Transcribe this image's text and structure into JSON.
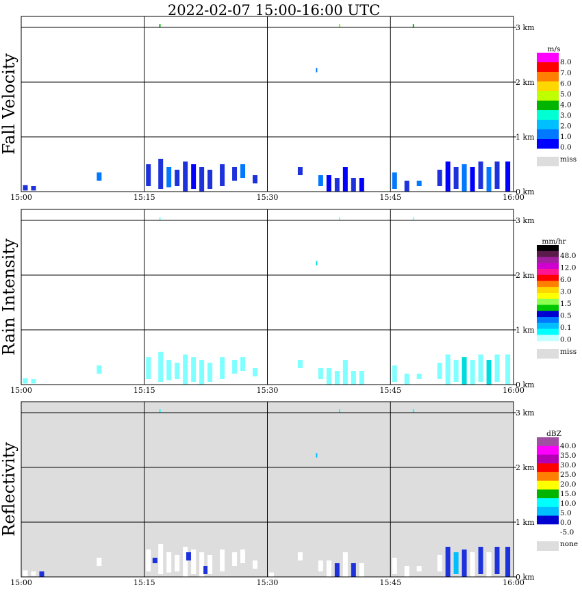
{
  "chart_data": {
    "type": "heatmap",
    "title": "2022-02-07  15:00-16:00 UTC",
    "x_tick_labels": [
      "15:00",
      "15:15",
      "15:30",
      "15:45",
      "16:00"
    ],
    "x_range_minutes": [
      0,
      60
    ],
    "y_tick_labels": [
      "0 km",
      "1 km",
      "2 km",
      "3 km"
    ],
    "y_range_km": [
      0,
      3.2
    ],
    "panels": [
      {
        "id": "fall-velocity",
        "label": "Fall Velocity",
        "background": "#ffffff",
        "legend": {
          "unit": "m/s",
          "colors": [
            "#ff00ff",
            "#ff0000",
            "#ff7f00",
            "#ffd700",
            "#bfff00",
            "#00b400",
            "#00ffd2",
            "#00bfff",
            "#0078ff",
            "#0000ff"
          ],
          "labels": [
            "8.0",
            "7.0",
            "6.0",
            "5.0",
            "4.0",
            "3.0",
            "2.0",
            "1.0",
            "0.0"
          ],
          "miss_label": "miss",
          "miss_color": "#dddddd"
        },
        "echoes": [
          {
            "t": 0.5,
            "z0": 0.02,
            "z1": 0.12,
            "c": "#1e32dc"
          },
          {
            "t": 1.5,
            "z0": 0.02,
            "z1": 0.1,
            "c": "#1e32dc"
          },
          {
            "t": 9.5,
            "z0": 0.2,
            "z1": 0.35,
            "c": "#0078ff"
          },
          {
            "t": 15.5,
            "z0": 0.1,
            "z1": 0.5,
            "c": "#1e32dc"
          },
          {
            "t": 17.0,
            "z0": 0.05,
            "z1": 0.6,
            "c": "#1e32dc"
          },
          {
            "t": 18.0,
            "z0": 0.08,
            "z1": 0.45,
            "c": "#0078ff"
          },
          {
            "t": 19.0,
            "z0": 0.1,
            "z1": 0.4,
            "c": "#1e32dc"
          },
          {
            "t": 20.0,
            "z0": 0.0,
            "z1": 0.55,
            "c": "#1e32dc"
          },
          {
            "t": 21.0,
            "z0": 0.05,
            "z1": 0.5,
            "c": "#0000ff"
          },
          {
            "t": 22.0,
            "z0": 0.0,
            "z1": 0.45,
            "c": "#1e32dc"
          },
          {
            "t": 23.0,
            "z0": 0.05,
            "z1": 0.4,
            "c": "#1e32dc"
          },
          {
            "t": 24.5,
            "z0": 0.1,
            "z1": 0.5,
            "c": "#1e32dc"
          },
          {
            "t": 26.0,
            "z0": 0.2,
            "z1": 0.45,
            "c": "#1e32dc"
          },
          {
            "t": 27.0,
            "z0": 0.25,
            "z1": 0.5,
            "c": "#0078ff"
          },
          {
            "t": 28.5,
            "z0": 0.15,
            "z1": 0.3,
            "c": "#1e32dc"
          },
          {
            "t": 34.0,
            "z0": 0.3,
            "z1": 0.45,
            "c": "#1e32dc"
          },
          {
            "t": 36.5,
            "z0": 0.1,
            "z1": 0.3,
            "c": "#0078ff"
          },
          {
            "t": 37.5,
            "z0": 0.0,
            "z1": 0.3,
            "c": "#0000ff"
          },
          {
            "t": 38.5,
            "z0": 0.0,
            "z1": 0.25,
            "c": "#1e32dc"
          },
          {
            "t": 39.5,
            "z0": 0.0,
            "z1": 0.45,
            "c": "#0000ff"
          },
          {
            "t": 40.5,
            "z0": 0.0,
            "z1": 0.25,
            "c": "#1e32dc"
          },
          {
            "t": 41.5,
            "z0": 0.0,
            "z1": 0.25,
            "c": "#0000ff"
          },
          {
            "t": 45.5,
            "z0": 0.05,
            "z1": 0.35,
            "c": "#0078ff"
          },
          {
            "t": 47.0,
            "z0": 0.0,
            "z1": 0.2,
            "c": "#1e32dc"
          },
          {
            "t": 48.5,
            "z0": 0.1,
            "z1": 0.2,
            "c": "#0078ff"
          },
          {
            "t": 51.0,
            "z0": 0.1,
            "z1": 0.4,
            "c": "#1e32dc"
          },
          {
            "t": 52.0,
            "z0": 0.0,
            "z1": 0.55,
            "c": "#0000ff"
          },
          {
            "t": 53.0,
            "z0": 0.05,
            "z1": 0.45,
            "c": "#1e32dc"
          },
          {
            "t": 54.0,
            "z0": 0.0,
            "z1": 0.5,
            "c": "#0078ff"
          },
          {
            "t": 55.0,
            "z0": 0.0,
            "z1": 0.45,
            "c": "#0000ff"
          },
          {
            "t": 56.0,
            "z0": 0.05,
            "z1": 0.55,
            "c": "#1e32dc"
          },
          {
            "t": 57.0,
            "z0": 0.0,
            "z1": 0.45,
            "c": "#0078ff"
          },
          {
            "t": 58.0,
            "z0": 0.05,
            "z1": 0.55,
            "c": "#1e32dc"
          },
          {
            "t": 59.3,
            "z0": 0.0,
            "z1": 0.55,
            "c": "#0000ff"
          },
          {
            "t": 36.0,
            "z0": 2.18,
            "z1": 2.26,
            "c": "#0078ff"
          },
          {
            "t": 16.9,
            "z0": 3.0,
            "z1": 3.06,
            "c": "#00b400"
          },
          {
            "t": 38.8,
            "z0": 3.0,
            "z1": 3.06,
            "c": "#7fff00"
          },
          {
            "t": 47.8,
            "z0": 3.0,
            "z1": 3.06,
            "c": "#00b400"
          }
        ]
      },
      {
        "id": "rain-intensity",
        "label": "Rain Intensity",
        "background": "#ffffff",
        "legend": {
          "unit": "mm/hr",
          "colors": [
            "#000000",
            "#5a1a4a",
            "#a020a0",
            "#d000d0",
            "#ff1493",
            "#ff0000",
            "#ff7f00",
            "#ffd700",
            "#ffff00",
            "#8cff50",
            "#00c800",
            "#0000d0",
            "#0078ff",
            "#00bfff",
            "#00ffff",
            "#bfffff"
          ],
          "labels": [
            "48.0",
            "12.0",
            "6.0",
            "3.0",
            "1.5",
            "0.5",
            "0.1",
            "0.0"
          ],
          "miss_label": "miss",
          "miss_color": "#dddddd"
        },
        "echoes": [
          {
            "t": 0.5,
            "z0": 0.02,
            "z1": 0.12,
            "c": "#7fffff"
          },
          {
            "t": 1.5,
            "z0": 0.02,
            "z1": 0.1,
            "c": "#7fffff"
          },
          {
            "t": 9.5,
            "z0": 0.2,
            "z1": 0.35,
            "c": "#7fffff"
          },
          {
            "t": 15.5,
            "z0": 0.1,
            "z1": 0.5,
            "c": "#7fffff"
          },
          {
            "t": 17.0,
            "z0": 0.05,
            "z1": 0.6,
            "c": "#7fffff"
          },
          {
            "t": 18.0,
            "z0": 0.08,
            "z1": 0.45,
            "c": "#7fffff"
          },
          {
            "t": 19.0,
            "z0": 0.1,
            "z1": 0.4,
            "c": "#7fffff"
          },
          {
            "t": 20.0,
            "z0": 0.0,
            "z1": 0.55,
            "c": "#7fffff"
          },
          {
            "t": 21.0,
            "z0": 0.05,
            "z1": 0.5,
            "c": "#7fffff"
          },
          {
            "t": 22.0,
            "z0": 0.0,
            "z1": 0.45,
            "c": "#7fffff"
          },
          {
            "t": 23.0,
            "z0": 0.05,
            "z1": 0.4,
            "c": "#7fffff"
          },
          {
            "t": 24.5,
            "z0": 0.1,
            "z1": 0.5,
            "c": "#7fffff"
          },
          {
            "t": 26.0,
            "z0": 0.2,
            "z1": 0.45,
            "c": "#7fffff"
          },
          {
            "t": 27.0,
            "z0": 0.25,
            "z1": 0.5,
            "c": "#7fffff"
          },
          {
            "t": 28.5,
            "z0": 0.15,
            "z1": 0.3,
            "c": "#7fffff"
          },
          {
            "t": 34.0,
            "z0": 0.3,
            "z1": 0.45,
            "c": "#7fffff"
          },
          {
            "t": 36.5,
            "z0": 0.1,
            "z1": 0.3,
            "c": "#7fffff"
          },
          {
            "t": 37.5,
            "z0": 0.0,
            "z1": 0.3,
            "c": "#7fffff"
          },
          {
            "t": 38.5,
            "z0": 0.0,
            "z1": 0.25,
            "c": "#7fffff"
          },
          {
            "t": 39.5,
            "z0": 0.0,
            "z1": 0.45,
            "c": "#7fffff"
          },
          {
            "t": 40.5,
            "z0": 0.0,
            "z1": 0.25,
            "c": "#7fffff"
          },
          {
            "t": 41.5,
            "z0": 0.0,
            "z1": 0.25,
            "c": "#7fffff"
          },
          {
            "t": 45.5,
            "z0": 0.05,
            "z1": 0.35,
            "c": "#7fffff"
          },
          {
            "t": 47.0,
            "z0": 0.0,
            "z1": 0.2,
            "c": "#7fffff"
          },
          {
            "t": 48.5,
            "z0": 0.1,
            "z1": 0.2,
            "c": "#7fffff"
          },
          {
            "t": 51.0,
            "z0": 0.1,
            "z1": 0.4,
            "c": "#7fffff"
          },
          {
            "t": 52.0,
            "z0": 0.0,
            "z1": 0.55,
            "c": "#7fffff"
          },
          {
            "t": 53.0,
            "z0": 0.05,
            "z1": 0.45,
            "c": "#7fffff"
          },
          {
            "t": 54.0,
            "z0": 0.0,
            "z1": 0.5,
            "c": "#00dcdc"
          },
          {
            "t": 55.0,
            "z0": 0.0,
            "z1": 0.45,
            "c": "#7fffff"
          },
          {
            "t": 56.0,
            "z0": 0.05,
            "z1": 0.55,
            "c": "#7fffff"
          },
          {
            "t": 57.0,
            "z0": 0.0,
            "z1": 0.45,
            "c": "#00dcdc"
          },
          {
            "t": 58.0,
            "z0": 0.05,
            "z1": 0.55,
            "c": "#7fffff"
          },
          {
            "t": 59.3,
            "z0": 0.0,
            "z1": 0.55,
            "c": "#7fffff"
          },
          {
            "t": 36.0,
            "z0": 2.18,
            "z1": 2.26,
            "c": "#00dcdc"
          },
          {
            "t": 16.9,
            "z0": 3.0,
            "z1": 3.06,
            "c": "#7fffff"
          },
          {
            "t": 38.8,
            "z0": 3.0,
            "z1": 3.06,
            "c": "#7fffff"
          },
          {
            "t": 47.8,
            "z0": 3.0,
            "z1": 3.06,
            "c": "#7fffff"
          }
        ]
      },
      {
        "id": "reflectivity",
        "label": "Reflectivity",
        "background": "#dddddd",
        "legend": {
          "unit": "dBZ",
          "colors": [
            "#a050a0",
            "#ff00ff",
            "#b400b4",
            "#ff0000",
            "#ff7f00",
            "#ffff00",
            "#00b400",
            "#00ffff",
            "#00bfff",
            "#0000d0",
            "#ffffff"
          ],
          "labels": [
            "40.0",
            "35.0",
            "30.0",
            "25.0",
            "20.0",
            "15.0",
            "10.0",
            "5.0",
            "0.0",
            "-5.0"
          ],
          "miss_label": "none",
          "miss_color": "#dddddd"
        },
        "echoes": [
          {
            "t": 0.5,
            "z0": 0.0,
            "z1": 0.12,
            "c": "#ffffff"
          },
          {
            "t": 1.5,
            "z0": 0.02,
            "z1": 0.1,
            "c": "#ffffff"
          },
          {
            "t": 2.5,
            "z0": 0.0,
            "z1": 0.1,
            "c": "#1e32dc"
          },
          {
            "t": 9.5,
            "z0": 0.2,
            "z1": 0.35,
            "c": "#ffffff"
          },
          {
            "t": 15.5,
            "z0": 0.1,
            "z1": 0.5,
            "c": "#ffffff"
          },
          {
            "t": 16.3,
            "z0": 0.25,
            "z1": 0.35,
            "c": "#1e32dc"
          },
          {
            "t": 17.0,
            "z0": 0.05,
            "z1": 0.6,
            "c": "#ffffff"
          },
          {
            "t": 18.0,
            "z0": 0.08,
            "z1": 0.45,
            "c": "#ffffff"
          },
          {
            "t": 19.0,
            "z0": 0.1,
            "z1": 0.4,
            "c": "#ffffff"
          },
          {
            "t": 20.0,
            "z0": 0.0,
            "z1": 0.55,
            "c": "#ffffff"
          },
          {
            "t": 20.4,
            "z0": 0.3,
            "z1": 0.45,
            "c": "#1e32dc"
          },
          {
            "t": 21.0,
            "z0": 0.05,
            "z1": 0.5,
            "c": "#ffffff"
          },
          {
            "t": 22.0,
            "z0": 0.0,
            "z1": 0.45,
            "c": "#ffffff"
          },
          {
            "t": 22.5,
            "z0": 0.05,
            "z1": 0.2,
            "c": "#1e32dc"
          },
          {
            "t": 23.0,
            "z0": 0.05,
            "z1": 0.4,
            "c": "#ffffff"
          },
          {
            "t": 24.5,
            "z0": 0.1,
            "z1": 0.5,
            "c": "#ffffff"
          },
          {
            "t": 26.0,
            "z0": 0.2,
            "z1": 0.45,
            "c": "#ffffff"
          },
          {
            "t": 27.0,
            "z0": 0.25,
            "z1": 0.5,
            "c": "#ffffff"
          },
          {
            "t": 28.5,
            "z0": 0.15,
            "z1": 0.3,
            "c": "#ffffff"
          },
          {
            "t": 30.5,
            "z0": 0.0,
            "z1": 0.08,
            "c": "#ffffff"
          },
          {
            "t": 34.0,
            "z0": 0.3,
            "z1": 0.45,
            "c": "#ffffff"
          },
          {
            "t": 36.5,
            "z0": 0.1,
            "z1": 0.3,
            "c": "#ffffff"
          },
          {
            "t": 37.5,
            "z0": 0.0,
            "z1": 0.3,
            "c": "#ffffff"
          },
          {
            "t": 38.5,
            "z0": 0.0,
            "z1": 0.25,
            "c": "#1e32dc"
          },
          {
            "t": 39.5,
            "z0": 0.0,
            "z1": 0.45,
            "c": "#ffffff"
          },
          {
            "t": 40.5,
            "z0": 0.0,
            "z1": 0.25,
            "c": "#1e32dc"
          },
          {
            "t": 41.5,
            "z0": 0.0,
            "z1": 0.25,
            "c": "#ffffff"
          },
          {
            "t": 45.5,
            "z0": 0.05,
            "z1": 0.35,
            "c": "#ffffff"
          },
          {
            "t": 47.0,
            "z0": 0.0,
            "z1": 0.2,
            "c": "#ffffff"
          },
          {
            "t": 48.5,
            "z0": 0.1,
            "z1": 0.2,
            "c": "#ffffff"
          },
          {
            "t": 51.0,
            "z0": 0.1,
            "z1": 0.4,
            "c": "#ffffff"
          },
          {
            "t": 52.0,
            "z0": 0.0,
            "z1": 0.55,
            "c": "#1e32dc"
          },
          {
            "t": 53.0,
            "z0": 0.05,
            "z1": 0.45,
            "c": "#00bfff"
          },
          {
            "t": 54.0,
            "z0": 0.0,
            "z1": 0.5,
            "c": "#1e32dc"
          },
          {
            "t": 55.0,
            "z0": 0.0,
            "z1": 0.45,
            "c": "#ffffff"
          },
          {
            "t": 56.0,
            "z0": 0.05,
            "z1": 0.55,
            "c": "#1e32dc"
          },
          {
            "t": 57.0,
            "z0": 0.0,
            "z1": 0.45,
            "c": "#ffffff"
          },
          {
            "t": 58.0,
            "z0": 0.05,
            "z1": 0.55,
            "c": "#1e32dc"
          },
          {
            "t": 59.3,
            "z0": 0.0,
            "z1": 0.55,
            "c": "#1e32dc"
          },
          {
            "t": 36.0,
            "z0": 2.18,
            "z1": 2.26,
            "c": "#00bfff"
          },
          {
            "t": 16.9,
            "z0": 3.0,
            "z1": 3.06,
            "c": "#00ffff"
          },
          {
            "t": 38.8,
            "z0": 3.0,
            "z1": 3.06,
            "c": "#00ffff"
          },
          {
            "t": 47.8,
            "z0": 3.0,
            "z1": 3.06,
            "c": "#00ffff"
          }
        ]
      }
    ]
  }
}
